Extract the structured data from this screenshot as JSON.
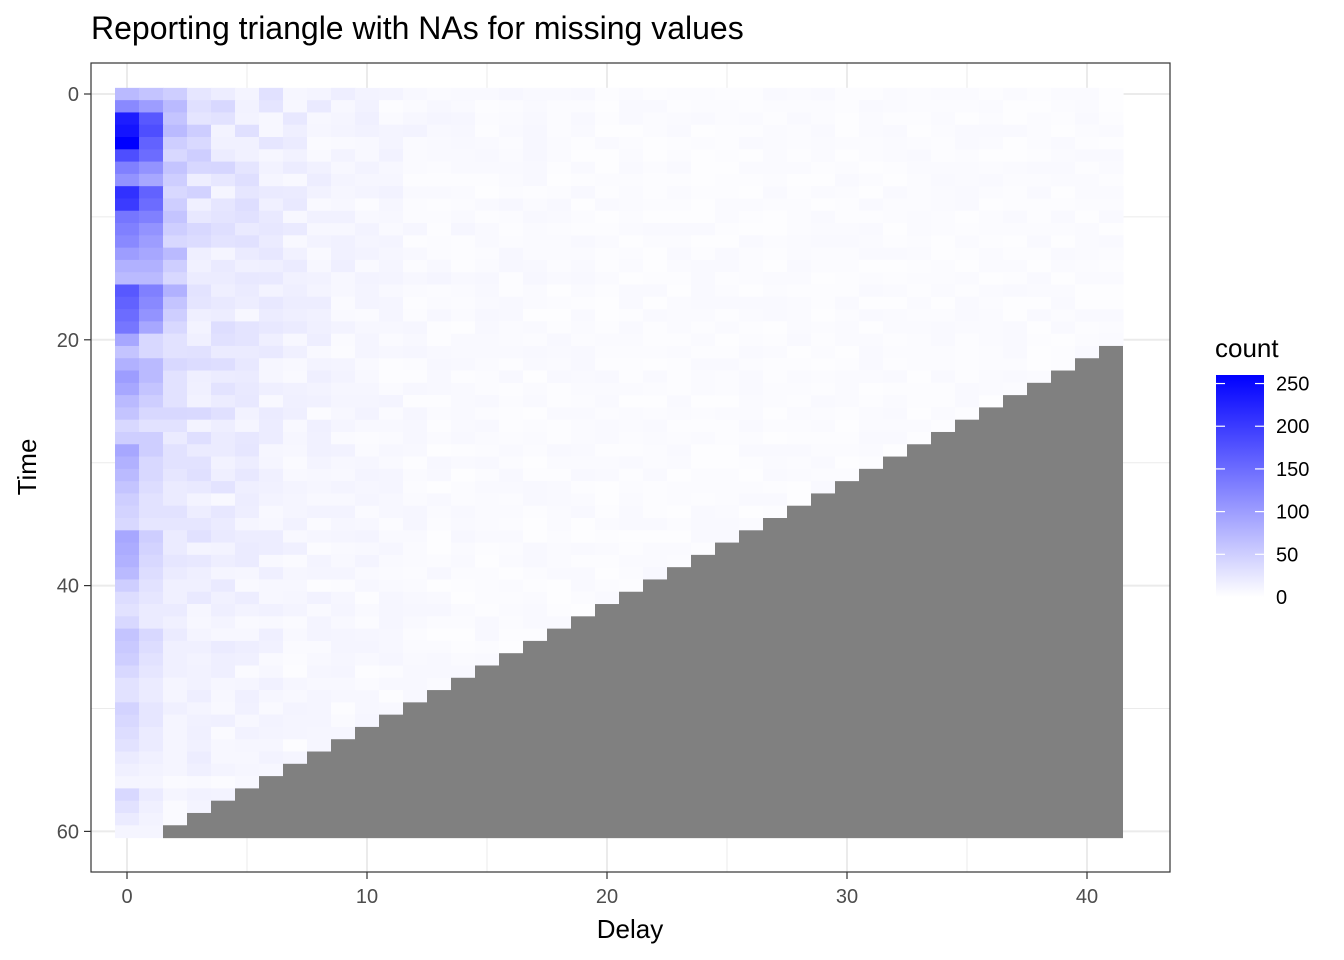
{
  "chart_data": {
    "type": "heatmap",
    "title": "Reporting triangle with NAs for missing values",
    "xlabel": "Delay",
    "ylabel": "Time",
    "x_range": [
      0,
      41
    ],
    "y_range": [
      0,
      60
    ],
    "y_reversed": true,
    "x_ticks": [
      0,
      10,
      20,
      30,
      40
    ],
    "y_ticks": [
      0,
      20,
      40,
      60
    ],
    "x_tick_labels": [
      "0",
      "10",
      "20",
      "30",
      "40"
    ],
    "y_tick_labels": [
      "0",
      "20",
      "40",
      "60"
    ],
    "grid": true,
    "missing_rule": "cells with delay + time > 61 are NA",
    "colors": {
      "low": "#ffffff",
      "high": "#0000ff",
      "na": "#808080",
      "panel_border": "#333333",
      "grid": "#ebebeb"
    },
    "legend": {
      "title": "count",
      "position": "right",
      "range": [
        0,
        260
      ],
      "breaks": [
        0,
        50,
        100,
        150,
        200,
        250
      ],
      "labels": [
        "0",
        "50",
        "100",
        "150",
        "200",
        "250"
      ]
    },
    "delay0_counts": [
      70,
      120,
      230,
      240,
      260,
      180,
      130,
      110,
      210,
      200,
      140,
      130,
      120,
      100,
      80,
      70,
      170,
      160,
      150,
      140,
      90,
      60,
      80,
      100,
      90,
      70,
      60,
      40,
      50,
      90,
      80,
      70,
      60,
      50,
      45,
      40,
      90,
      85,
      80,
      70,
      50,
      35,
      30,
      40,
      60,
      55,
      50,
      40,
      30,
      30,
      45,
      40,
      35,
      30,
      20,
      15,
      10,
      40,
      30,
      20,
      10
    ],
    "delay1_counts": [
      60,
      100,
      170,
      180,
      160,
      150,
      110,
      90,
      160,
      150,
      130,
      110,
      100,
      90,
      80,
      70,
      130,
      120,
      110,
      90,
      40,
      40,
      70,
      70,
      60,
      50,
      40,
      30,
      50,
      50,
      40,
      40,
      35,
      30,
      30,
      25,
      50,
      45,
      40,
      35,
      30,
      25,
      20,
      20,
      40,
      35,
      30,
      25,
      20,
      20,
      25,
      25,
      20,
      20,
      15,
      12,
      10,
      20,
      15,
      12,
      10
    ],
    "delay2_counts": [
      50,
      70,
      60,
      70,
      50,
      40,
      60,
      50,
      40,
      50,
      60,
      50,
      40,
      70,
      50,
      40,
      80,
      60,
      50,
      40,
      30,
      30,
      40,
      30,
      30,
      30,
      40,
      30,
      20,
      30,
      30,
      25,
      20,
      20,
      30,
      25,
      20,
      20,
      25,
      20,
      15,
      15,
      20,
      15,
      20,
      15,
      15,
      15,
      10,
      10,
      15,
      10,
      10,
      10,
      10,
      10,
      5,
      10,
      5,
      5,
      5
    ],
    "shape_decay": 0.24,
    "tail_level": 4
  }
}
